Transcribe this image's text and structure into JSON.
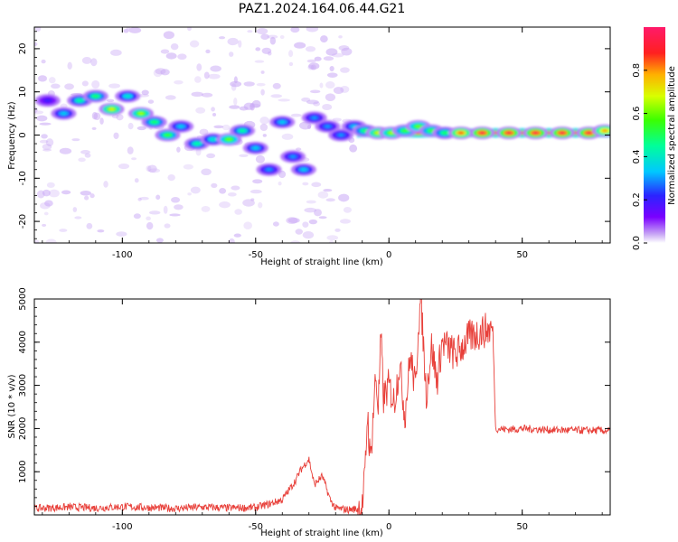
{
  "figure": {
    "title": "PAZ1.2024.164.06.44.G21"
  },
  "chart_data": [
    {
      "type": "heatmap",
      "title": "",
      "xlabel": "Height of straight line (km)",
      "ylabel": "Frequency (Hz)",
      "xlim": [
        -133,
        83
      ],
      "ylim": [
        -25,
        25
      ],
      "x_ticks": [
        -100,
        -50,
        0,
        50
      ],
      "y_ticks": [
        -20,
        -10,
        0,
        10,
        20
      ],
      "colorbar": {
        "label": "Normalized spectral amplitude",
        "range": [
          0,
          1
        ],
        "ticks": [
          "0.0",
          "0.2",
          "0.4",
          "0.6",
          "0.8"
        ]
      },
      "blobs": [
        {
          "x": -128,
          "y": 8,
          "v": 0.2
        },
        {
          "x": -122,
          "y": 5,
          "v": 0.35
        },
        {
          "x": -116,
          "y": 8,
          "v": 0.45
        },
        {
          "x": -110,
          "y": 9,
          "v": 0.5
        },
        {
          "x": -104,
          "y": 6,
          "v": 0.7
        },
        {
          "x": -98,
          "y": 9,
          "v": 0.4
        },
        {
          "x": -93,
          "y": 5,
          "v": 0.65
        },
        {
          "x": -88,
          "y": 3,
          "v": 0.5
        },
        {
          "x": -83,
          "y": 0,
          "v": 0.55
        },
        {
          "x": -78,
          "y": 2,
          "v": 0.35
        },
        {
          "x": -72,
          "y": -2,
          "v": 0.45
        },
        {
          "x": -66,
          "y": -1,
          "v": 0.4
        },
        {
          "x": -60,
          "y": -1,
          "v": 0.6
        },
        {
          "x": -55,
          "y": 1,
          "v": 0.45
        },
        {
          "x": -50,
          "y": -3,
          "v": 0.35
        },
        {
          "x": -45,
          "y": -8,
          "v": 0.3
        },
        {
          "x": -40,
          "y": 3,
          "v": 0.35
        },
        {
          "x": -36,
          "y": -5,
          "v": 0.3
        },
        {
          "x": -32,
          "y": -8,
          "v": 0.35
        },
        {
          "x": -28,
          "y": 4,
          "v": 0.3
        },
        {
          "x": -23,
          "y": 2,
          "v": 0.3
        },
        {
          "x": -18,
          "y": 0,
          "v": 0.3
        },
        {
          "x": -13,
          "y": 2,
          "v": 0.35
        },
        {
          "x": -9,
          "y": 1,
          "v": 0.5
        },
        {
          "x": -4,
          "y": 0.5,
          "v": 0.7
        },
        {
          "x": 1,
          "y": 0.5,
          "v": 0.65
        },
        {
          "x": 6,
          "y": 1,
          "v": 0.55
        },
        {
          "x": 11,
          "y": 2,
          "v": 0.6
        },
        {
          "x": 16,
          "y": 1,
          "v": 0.55
        },
        {
          "x": 21,
          "y": 0.5,
          "v": 0.5
        },
        {
          "x": 27,
          "y": 0.5,
          "v": 0.85
        },
        {
          "x": 35,
          "y": 0.5,
          "v": 0.95
        },
        {
          "x": 45,
          "y": 0.5,
          "v": 0.95
        },
        {
          "x": 55,
          "y": 0.5,
          "v": 0.95
        },
        {
          "x": 65,
          "y": 0.5,
          "v": 0.95
        },
        {
          "x": 75,
          "y": 0.5,
          "v": 0.95
        },
        {
          "x": 81,
          "y": 1,
          "v": 0.8
        }
      ],
      "band": {
        "x_start": -12,
        "x_end": 83,
        "y_center": 0.5,
        "v": 0.95
      }
    },
    {
      "type": "line",
      "title": "",
      "xlabel": "Height of straight line (km)",
      "ylabel": "SNR (10 * v/v)",
      "xlim": [
        -133,
        83
      ],
      "ylim": [
        0,
        5000
      ],
      "x_ticks": [
        -100,
        -50,
        0,
        50
      ],
      "y_ticks": [
        1000,
        2000,
        3000,
        4000,
        5000
      ],
      "series": [
        {
          "color": "#e8403a",
          "x": [
            -133,
            -120,
            -110,
            -100,
            -90,
            -80,
            -70,
            -60,
            -50,
            -45,
            -40,
            -35,
            -33,
            -30,
            -28,
            -25,
            -22,
            -20,
            -15,
            -10,
            -9,
            -8,
            -7,
            -5,
            -4,
            -3,
            -2,
            0,
            2,
            4,
            6,
            8,
            10,
            11,
            12,
            14,
            16,
            18,
            20,
            25,
            30,
            35,
            38,
            39,
            40,
            45,
            50,
            60,
            70,
            83
          ],
          "y": [
            150,
            180,
            160,
            190,
            170,
            150,
            180,
            160,
            170,
            250,
            350,
            800,
            1050,
            1300,
            700,
            900,
            350,
            150,
            120,
            160,
            900,
            2400,
            1200,
            3200,
            2500,
            4100,
            2700,
            3000,
            2600,
            3500,
            2300,
            3700,
            2900,
            4400,
            5000,
            2800,
            3900,
            3100,
            4000,
            3700,
            4100,
            4250,
            4300,
            4300,
            2000,
            1980,
            2000,
            1970,
            1960,
            1950
          ]
        }
      ]
    }
  ]
}
